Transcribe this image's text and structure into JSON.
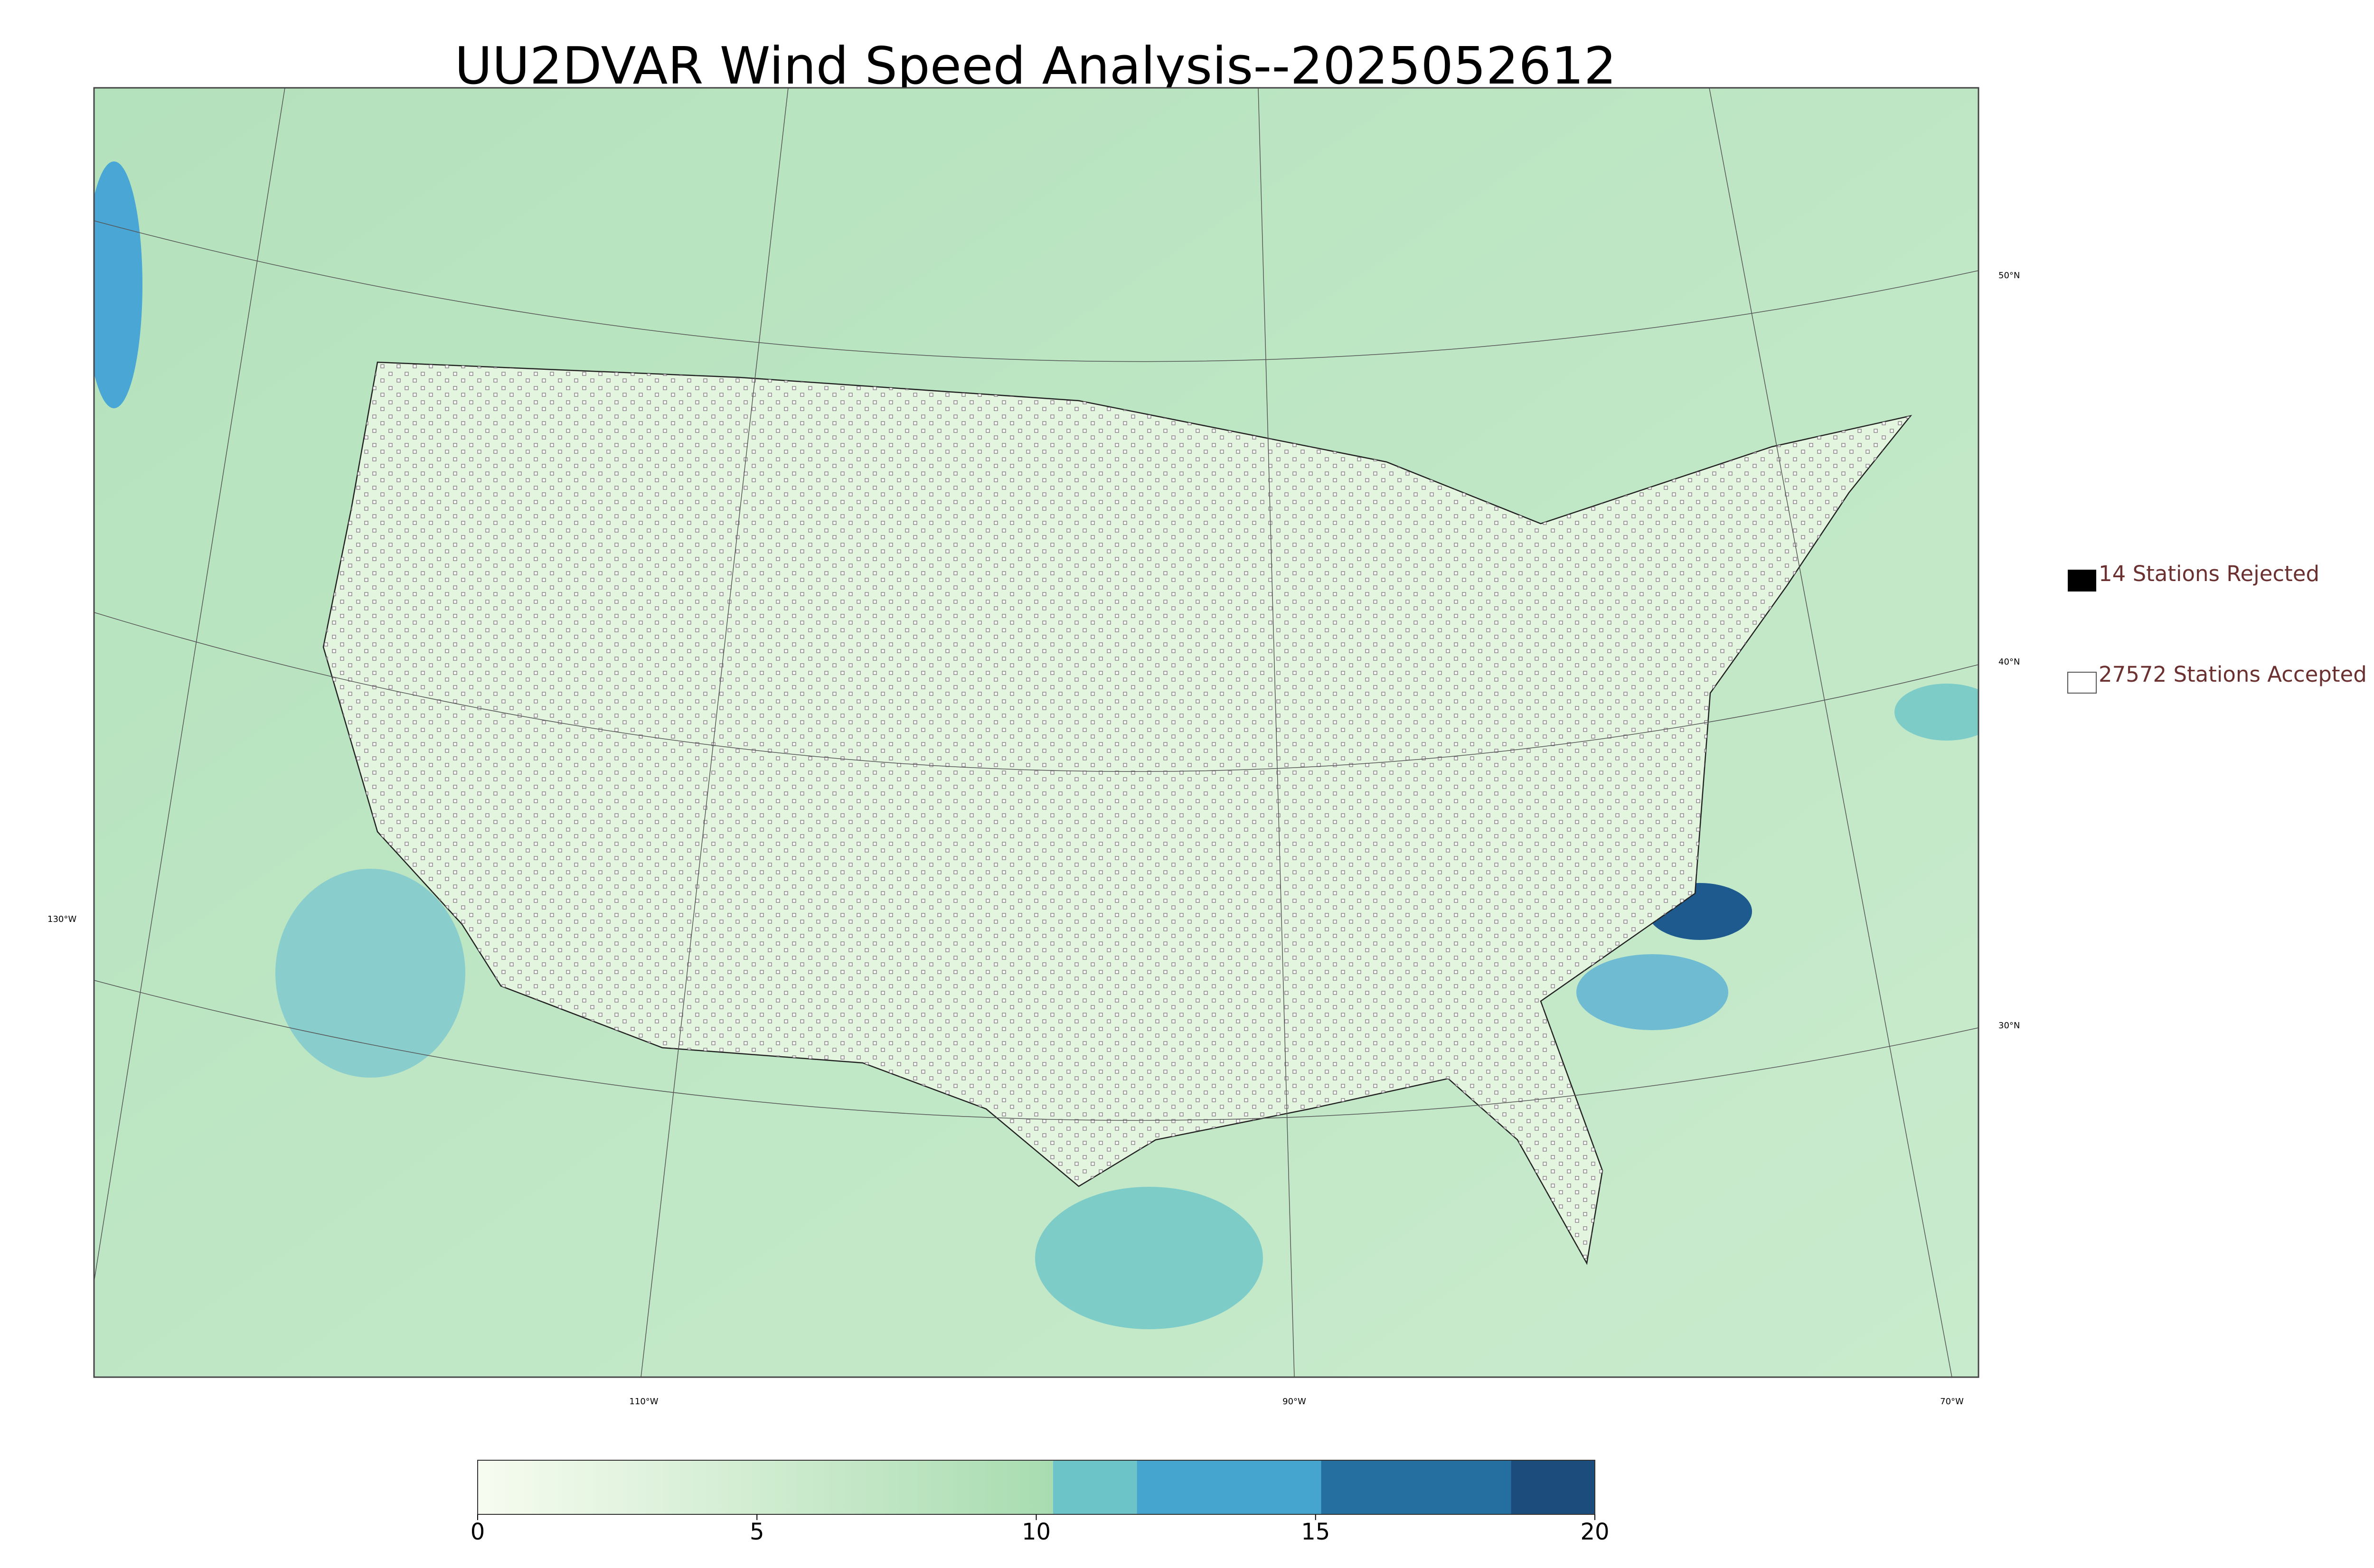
{
  "title": "UU2DVAR Wind Speed Analysis--2025052612",
  "latitude_labels": [
    "50°N",
    "40°N",
    "30°N"
  ],
  "longitude_labels": [
    "130°W",
    "110°W",
    "90°W",
    "70°W"
  ],
  "legend": {
    "rejected": "14 Stations Rejected",
    "accepted": "27572 Stations Accepted"
  },
  "colorbar": {
    "lim": [
      0,
      20
    ],
    "ticks": [
      0,
      5,
      10,
      15,
      20
    ],
    "bands": [
      {
        "from": 0,
        "to": 10.3,
        "color": "#a8dcb0"
      },
      {
        "from": 10.3,
        "to": 11.8,
        "color": "#6cc4c8"
      },
      {
        "from": 11.8,
        "to": 15.1,
        "color": "#45a5cf"
      },
      {
        "from": 15.1,
        "to": 18.5,
        "color": "#246f9f"
      },
      {
        "from": 18.5,
        "to": 20,
        "color": "#1c4c7c"
      }
    ]
  }
}
